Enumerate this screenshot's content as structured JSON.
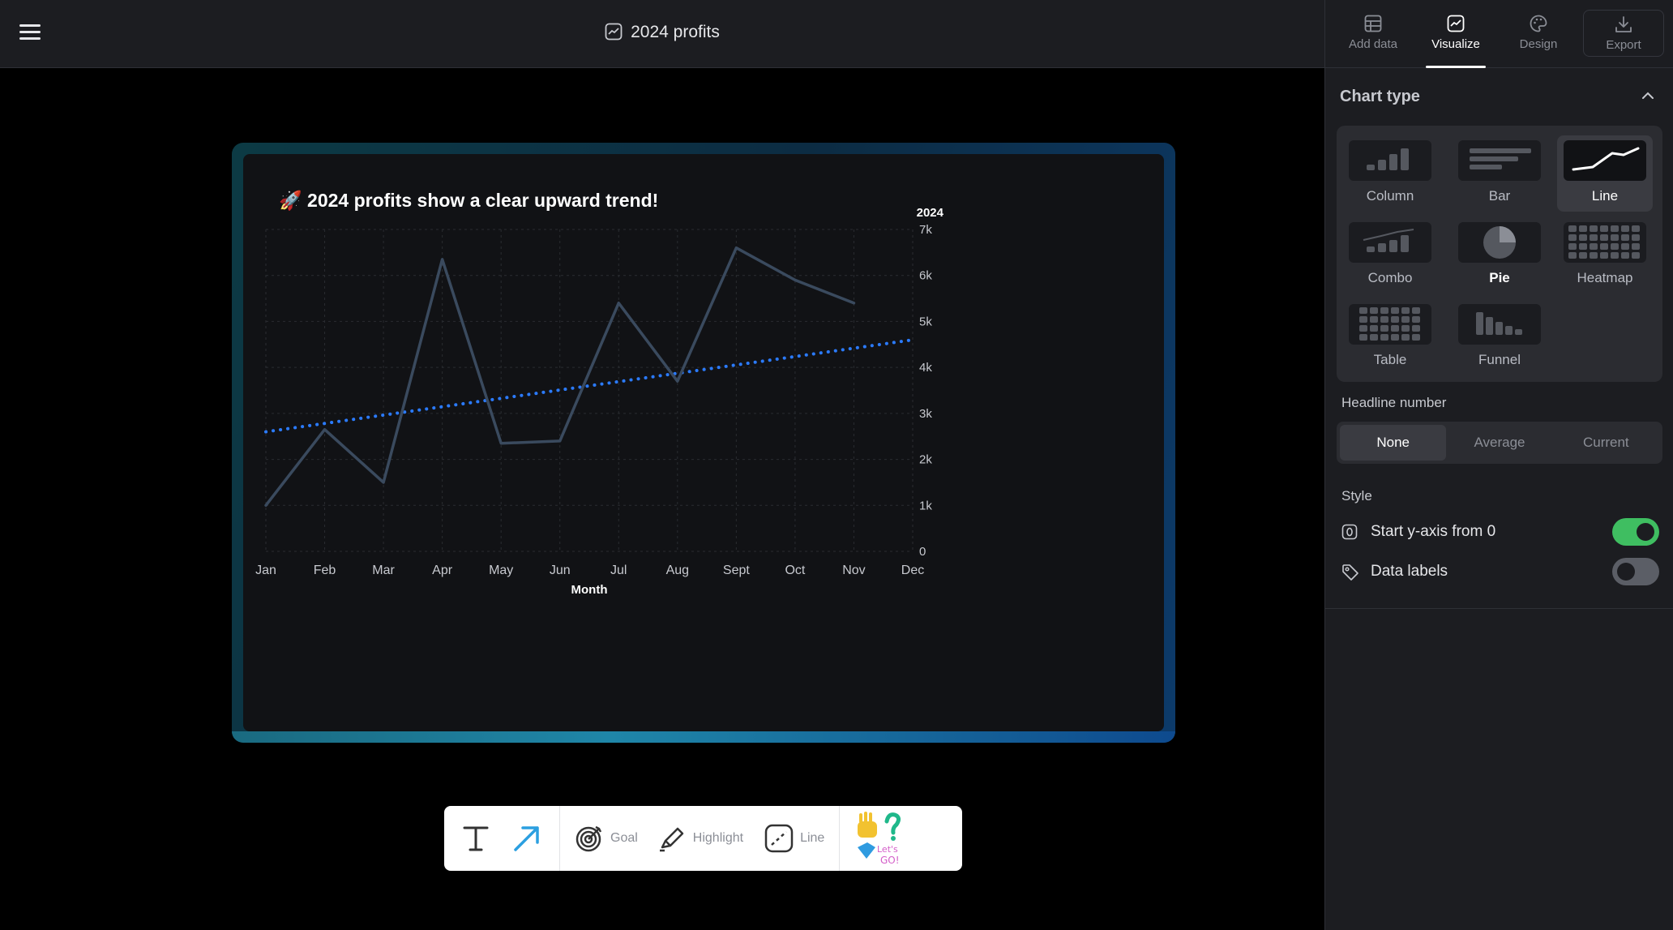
{
  "header": {
    "title": "2024 profits"
  },
  "sidebar": {
    "tabs": [
      {
        "label": "Add data"
      },
      {
        "label": "Visualize"
      },
      {
        "label": "Design"
      },
      {
        "label": "Export"
      }
    ],
    "chart_type": {
      "heading": "Chart type",
      "options": [
        "Column",
        "Bar",
        "Line",
        "Combo",
        "Pie",
        "Heatmap",
        "Table",
        "Funnel"
      ],
      "selected": "Line"
    },
    "headline_number": {
      "label": "Headline number",
      "options": [
        "None",
        "Average",
        "Current"
      ],
      "selected": "None"
    },
    "style": {
      "label": "Style",
      "start_y_axis": {
        "label": "Start y-axis from 0",
        "on": true
      },
      "data_labels": {
        "label": "Data labels",
        "on": false
      }
    }
  },
  "chart_data": {
    "type": "line",
    "title": "🚀 2024 profits show a clear upward trend!",
    "xlabel": "Month",
    "ylabel": "",
    "categories": [
      "Jan",
      "Feb",
      "Mar",
      "Apr",
      "May",
      "Jun",
      "Jul",
      "Aug",
      "Sept",
      "Oct",
      "Nov",
      "Dec"
    ],
    "series": [
      {
        "name": "2024",
        "values": [
          1000,
          2650,
          1500,
          6350,
          2350,
          2400,
          5400,
          3700,
          6600,
          5900,
          5400,
          null
        ],
        "color": "#3a4a5e"
      }
    ],
    "trendline": {
      "style": "dotted",
      "color": "#2b7bff",
      "start": 2600,
      "end": 4600
    },
    "ylim": [
      0,
      7000
    ],
    "yticks": [
      "0",
      "1k",
      "2k",
      "3k",
      "4k",
      "5k",
      "6k",
      "7k"
    ],
    "y_axis_position": "right",
    "grid": true
  },
  "toolbar": {
    "goal_label": "Goal",
    "highlight_label": "Highlight",
    "line_label": "Line"
  }
}
